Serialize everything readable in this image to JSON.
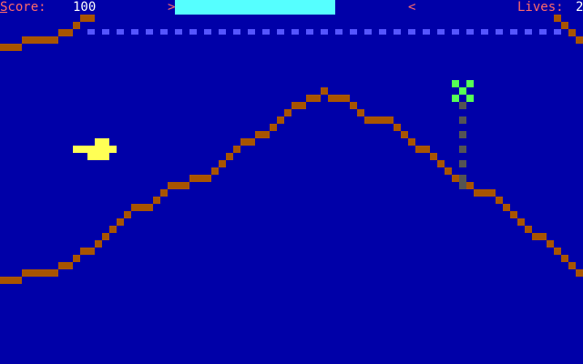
{
  "hud": {
    "score_label": "Score:",
    "score_value": "100",
    "lives_label": "Lives:",
    "lives_value": "2",
    "fuel_left_marker": ">",
    "fuel_right_marker": "<"
  },
  "colors": {
    "background": "#0000a8",
    "label": "#ff6a6a",
    "value": "#ffffff",
    "fuel_bar": "#55ffff",
    "fuel_marker": "#ff6a6a",
    "terrain": "#a85400",
    "ceiling_dots": "#5555ff",
    "ship": "#ffff55",
    "target": "#55ff55",
    "beam": "#545454"
  },
  "icons": {
    "player": "ship-icon",
    "enemy": "checkered-target-icon"
  }
}
